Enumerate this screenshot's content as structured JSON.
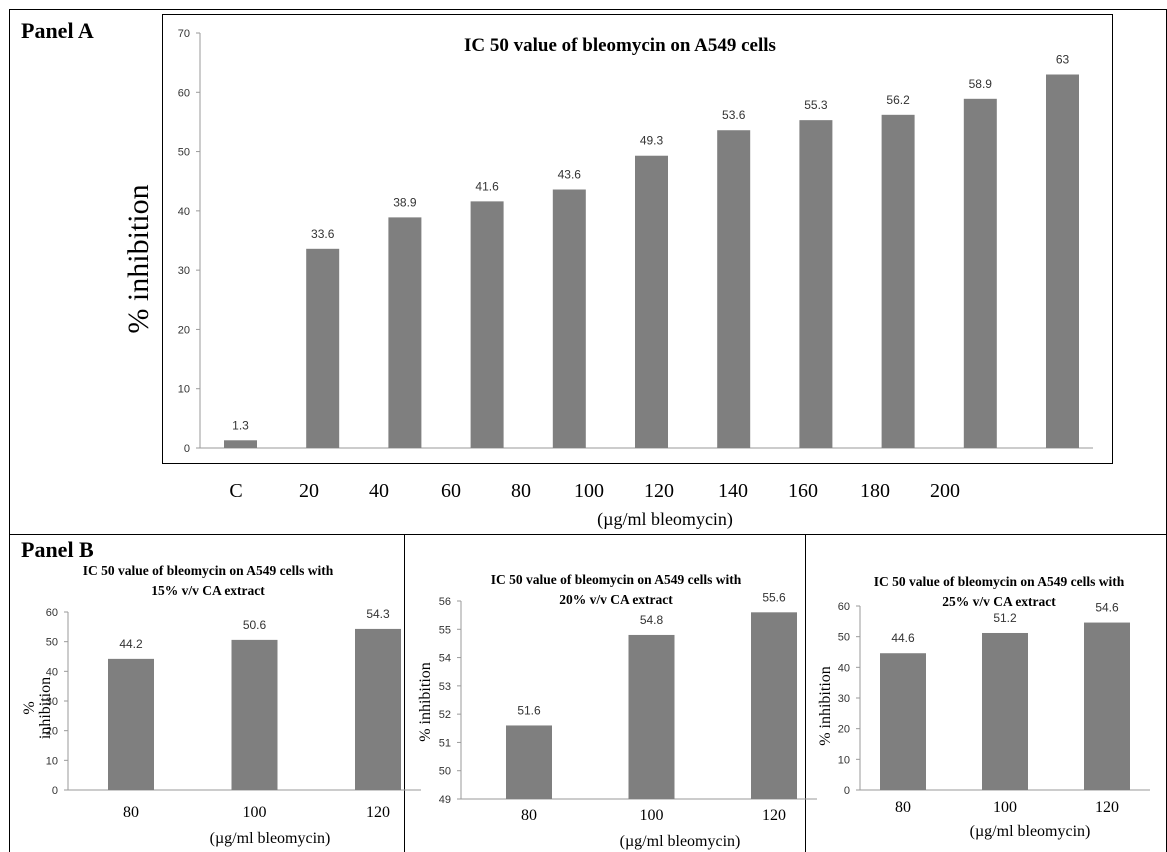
{
  "panel_a": {
    "label": "Panel A"
  },
  "panel_b": {
    "label": "Panel B"
  },
  "colors": {
    "bar": "#7f7f7f",
    "axis": "#9a9a9a",
    "frame": "#000000"
  },
  "chart_data": [
    {
      "type": "bar",
      "title": "IC 50 value of bleomycin on A549 cells",
      "ylabel": "% inhibition",
      "xlabel": "(µg/ml bleomycin)",
      "ylim": [
        0,
        70
      ],
      "yticks": [
        0,
        10,
        20,
        30,
        40,
        50,
        60,
        70
      ],
      "tick_labels": [
        "C",
        "20",
        "40",
        "60",
        "80",
        "100",
        "120",
        "140",
        "160",
        "180",
        "200"
      ],
      "values": [
        1.3,
        33.6,
        38.9,
        41.6,
        43.6,
        49.3,
        53.6,
        55.3,
        56.2,
        58.9,
        63
      ],
      "value_labels": [
        "1.3",
        "33.6",
        "38.9",
        "41.6",
        "43.6",
        "49.3",
        "53.6",
        "55.3",
        "56.2",
        "58.9",
        "63"
      ],
      "grid": false
    },
    {
      "type": "bar",
      "title": "IC 50 value of bleomycin on A549 cells with 15%  v/v CA extract",
      "title_lines": [
        "IC 50 value of bleomycin on A549 cells with",
        "15%  v/v CA extract"
      ],
      "ylabel": "% inhibition",
      "ylabel_lines": [
        "%",
        "inhibition"
      ],
      "xlabel": "(µg/ml bleomycin)",
      "ylim": [
        0,
        60
      ],
      "yticks": [
        0,
        10,
        20,
        30,
        40,
        50,
        60
      ],
      "categories": [
        "80",
        "100",
        "120"
      ],
      "values": [
        44.2,
        50.6,
        54.3
      ],
      "value_labels": [
        "44.2",
        "50.6",
        "54.3"
      ],
      "grid": false
    },
    {
      "type": "bar",
      "title": "IC 50 value of bleomycin on A549 cells with 20%  v/v CA extract",
      "title_lines": [
        "IC 50 value of bleomycin on A549 cells with",
        "20%  v/v CA extract"
      ],
      "ylabel": "% inhibition",
      "xlabel": "(µg/ml bleomycin)",
      "ylim": [
        49,
        56
      ],
      "yticks": [
        49,
        50,
        51,
        52,
        53,
        54,
        55,
        56
      ],
      "categories": [
        "80",
        "100",
        "120"
      ],
      "values": [
        51.6,
        54.8,
        55.6
      ],
      "value_labels": [
        "51.6",
        "54.8",
        "55.6"
      ],
      "grid": false
    },
    {
      "type": "bar",
      "title": "IC 50 value of bleomycin on A549 cells with 25%  v/v CA extract",
      "title_lines": [
        "IC 50 value of bleomycin on A549 cells with",
        "25%  v/v CA extract"
      ],
      "ylabel": "% inhibition",
      "xlabel": "(µg/ml bleomycin)",
      "ylim": [
        0,
        60
      ],
      "yticks": [
        0,
        10,
        20,
        30,
        40,
        50,
        60
      ],
      "categories": [
        "80",
        "100",
        "120"
      ],
      "values": [
        44.6,
        51.2,
        54.6
      ],
      "value_labels": [
        "44.6",
        "51.2",
        "54.6"
      ],
      "grid": false
    }
  ]
}
